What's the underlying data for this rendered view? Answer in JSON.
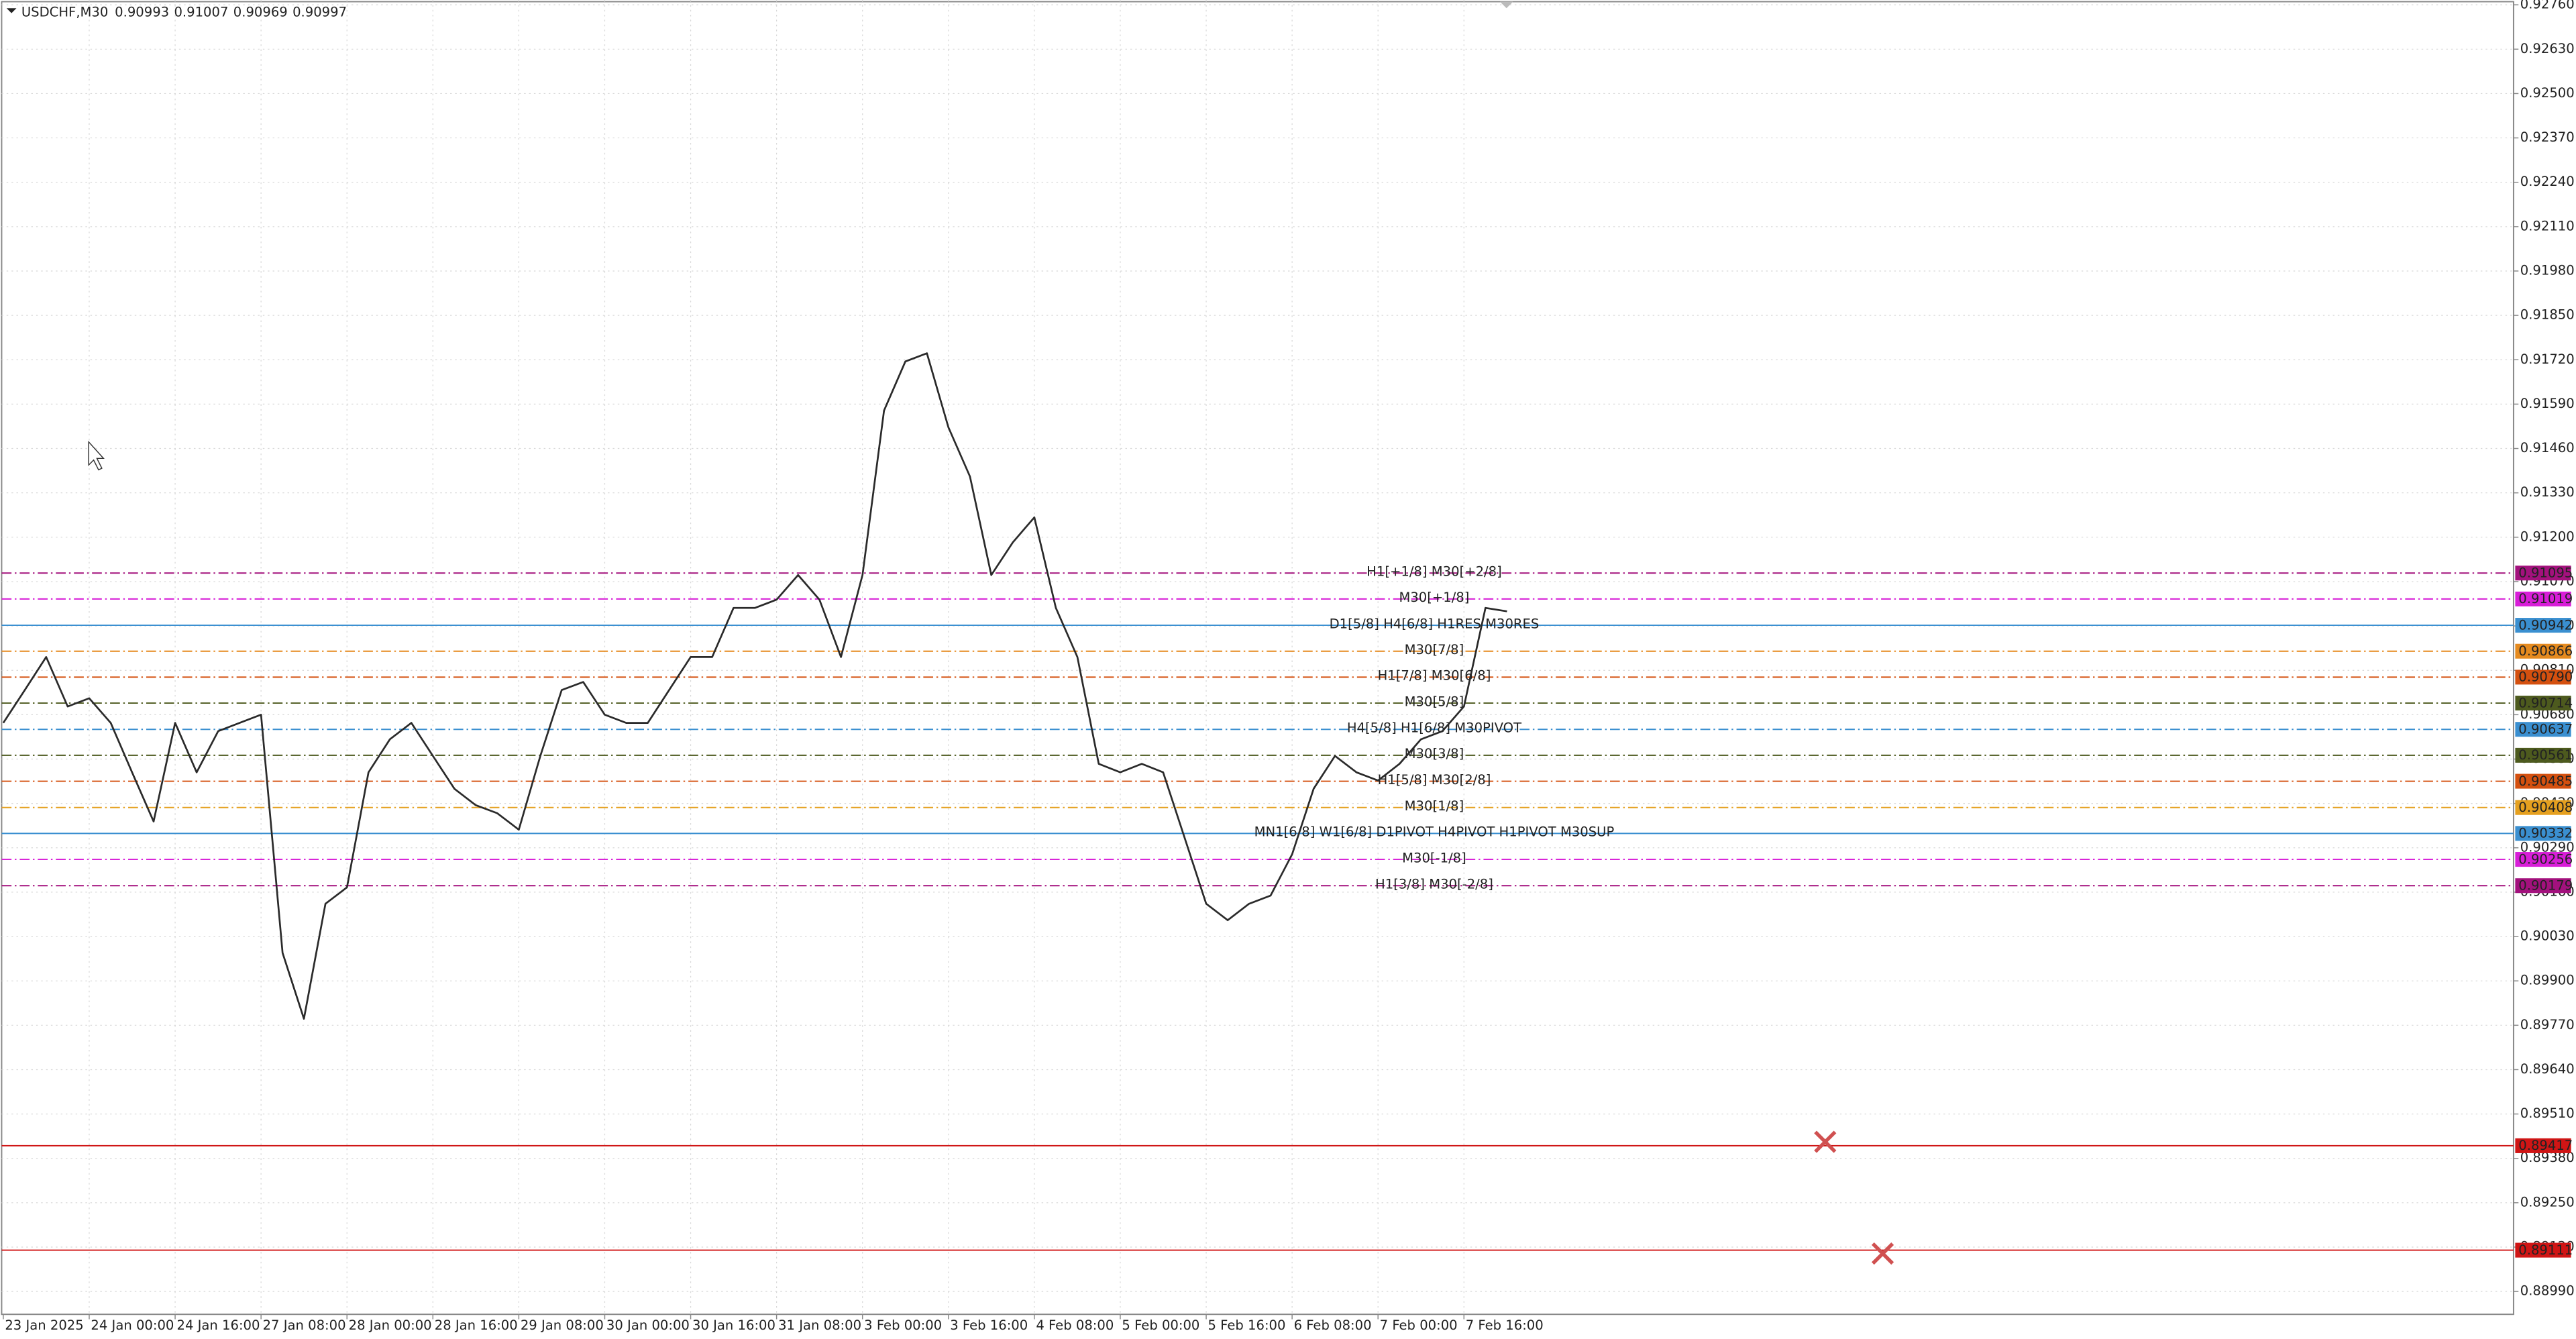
{
  "chart_data": {
    "type": "price-line",
    "symbol": "USDCHF,M30",
    "quote": [
      0.90993,
      0.91007,
      0.90969,
      0.90997
    ],
    "line_color": "#2a2a2a",
    "grid": true,
    "ylim": [
      0.88923,
      0.92774
    ],
    "yticks": [
      {
        "value": 0.9276,
        "label": "0.92760"
      },
      {
        "value": 0.9263,
        "label": "0.92630"
      },
      {
        "value": 0.925,
        "label": "0.92500"
      },
      {
        "value": 0.9237,
        "label": "0.92370"
      },
      {
        "value": 0.9224,
        "label": "0.92240"
      },
      {
        "value": 0.9211,
        "label": "0.92110"
      },
      {
        "value": 0.9198,
        "label": "0.91980"
      },
      {
        "value": 0.9185,
        "label": "0.91850"
      },
      {
        "value": 0.9172,
        "label": "0.91720"
      },
      {
        "value": 0.9159,
        "label": "0.91590"
      },
      {
        "value": 0.9146,
        "label": "0.91460"
      },
      {
        "value": 0.9133,
        "label": "0.91330"
      },
      {
        "value": 0.912,
        "label": "0.91200"
      },
      {
        "value": 0.9107,
        "label": "0.91070"
      },
      {
        "value": 0.9094,
        "label": "0.90940"
      },
      {
        "value": 0.9081,
        "label": "0.90810"
      },
      {
        "value": 0.9068,
        "label": "0.90680"
      },
      {
        "value": 0.9055,
        "label": "0.90550"
      },
      {
        "value": 0.9042,
        "label": "0.90420"
      },
      {
        "value": 0.9029,
        "label": "0.90290"
      },
      {
        "value": 0.9016,
        "label": "0.90160"
      },
      {
        "value": 0.9003,
        "label": "0.90030"
      },
      {
        "value": 0.899,
        "label": "0.89900"
      },
      {
        "value": 0.8977,
        "label": "0.89770"
      },
      {
        "value": 0.8964,
        "label": "0.89640"
      },
      {
        "value": 0.8951,
        "label": "0.89510"
      },
      {
        "value": 0.8938,
        "label": "0.89380"
      },
      {
        "value": 0.8925,
        "label": "0.89250"
      },
      {
        "value": 0.8912,
        "label": "0.89120"
      },
      {
        "value": 0.8899,
        "label": "0.88990"
      }
    ],
    "time_labels": [
      "23 Jan 2025",
      "24 Jan 00:00",
      "24 Jan 16:00",
      "27 Jan 08:00",
      "28 Jan 00:00",
      "28 Jan 16:00",
      "29 Jan 08:00",
      "30 Jan 00:00",
      "30 Jan 16:00",
      "31 Jan 08:00",
      "3 Feb 00:00",
      "3 Feb 16:00",
      "4 Feb 08:00",
      "5 Feb 00:00",
      "5 Feb 16:00",
      "6 Feb 08:00",
      "7 Feb 00:00",
      "7 Feb 16:00"
    ],
    "values": [
      0.90656,
      0.90752,
      0.90849,
      0.90704,
      0.90728,
      0.90656,
      0.90511,
      0.90367,
      0.90656,
      0.90511,
      0.90632,
      0.90656,
      0.9068,
      0.89982,
      0.89789,
      0.90126,
      0.90174,
      0.90511,
      0.90608,
      0.90656,
      0.90559,
      0.90463,
      0.90415,
      0.90391,
      0.90343,
      0.90559,
      0.90752,
      0.90776,
      0.9068,
      0.90656,
      0.90656,
      0.90752,
      0.90849,
      0.90849,
      0.90993,
      0.90993,
      0.91017,
      0.91089,
      0.91017,
      0.90849,
      0.91089,
      0.91571,
      0.91715,
      0.91739,
      0.91522,
      0.91378,
      0.91089,
      0.91185,
      0.91258,
      0.90993,
      0.90849,
      0.90536,
      0.90511,
      0.90536,
      0.90511,
      0.90319,
      0.90126,
      0.90078,
      0.90126,
      0.9015,
      0.90271,
      0.90463,
      0.90559,
      0.90511,
      0.90487,
      0.90536,
      0.90608,
      0.90632,
      0.90704,
      0.90993,
      0.90983
    ],
    "levels": [
      {
        "value": 0.91095,
        "text": "H1[+1/8] M30[+2/8]",
        "color": "#a3117d",
        "dash": true
      },
      {
        "value": 0.91019,
        "text": "M30[+1/8]",
        "color": "#d81ed8",
        "dash": true
      },
      {
        "value": 0.90942,
        "text": "D1[5/8] H4[6/8] H1RES M30RES",
        "color": "#3a8fd0",
        "dash": false
      },
      {
        "value": 0.90866,
        "text": "M30[7/8]",
        "color": "#e58a1f",
        "dash": true
      },
      {
        "value": 0.9079,
        "value_label": "0.90790",
        "text": "H1[7/8] M30[6/8]",
        "color": "#d4500f",
        "dash": true
      },
      {
        "value": 0.90714,
        "text": "M30[5/8]",
        "color": "#4d5a1e",
        "dash": true
      },
      {
        "value": 0.90637,
        "text": "H4[5/8] H1[6/8] M30PIVOT",
        "color": "#3a8fd0",
        "dash": true
      },
      {
        "value": 0.90561,
        "text": "M30[3/8]",
        "color": "#4d5a1e",
        "dash": true
      },
      {
        "value": 0.90485,
        "text": "H1[5/8] M30[2/8]",
        "color": "#d4500f",
        "dash": true
      },
      {
        "value": 0.90408,
        "text": "M30[1/8]",
        "color": "#e5a01f",
        "dash": true
      },
      {
        "value": 0.90332,
        "text": "MN1[6/8] W1[6/8] D1PIVOT H4PIVOT H1PIVOT M30SUP",
        "color": "#3a8fd0",
        "dash": false
      },
      {
        "value": 0.90256,
        "text": "M30[-1/8]",
        "color": "#d81ed8",
        "dash": true
      },
      {
        "value": 0.90179,
        "text": "H1[3/8] M30[-2/8]",
        "color": "#a3117d",
        "dash": true
      },
      {
        "value": 0.89417,
        "color": "#d01515",
        "dash": false
      },
      {
        "value": 0.89111,
        "color": "#d01515",
        "dash": false
      }
    ]
  }
}
